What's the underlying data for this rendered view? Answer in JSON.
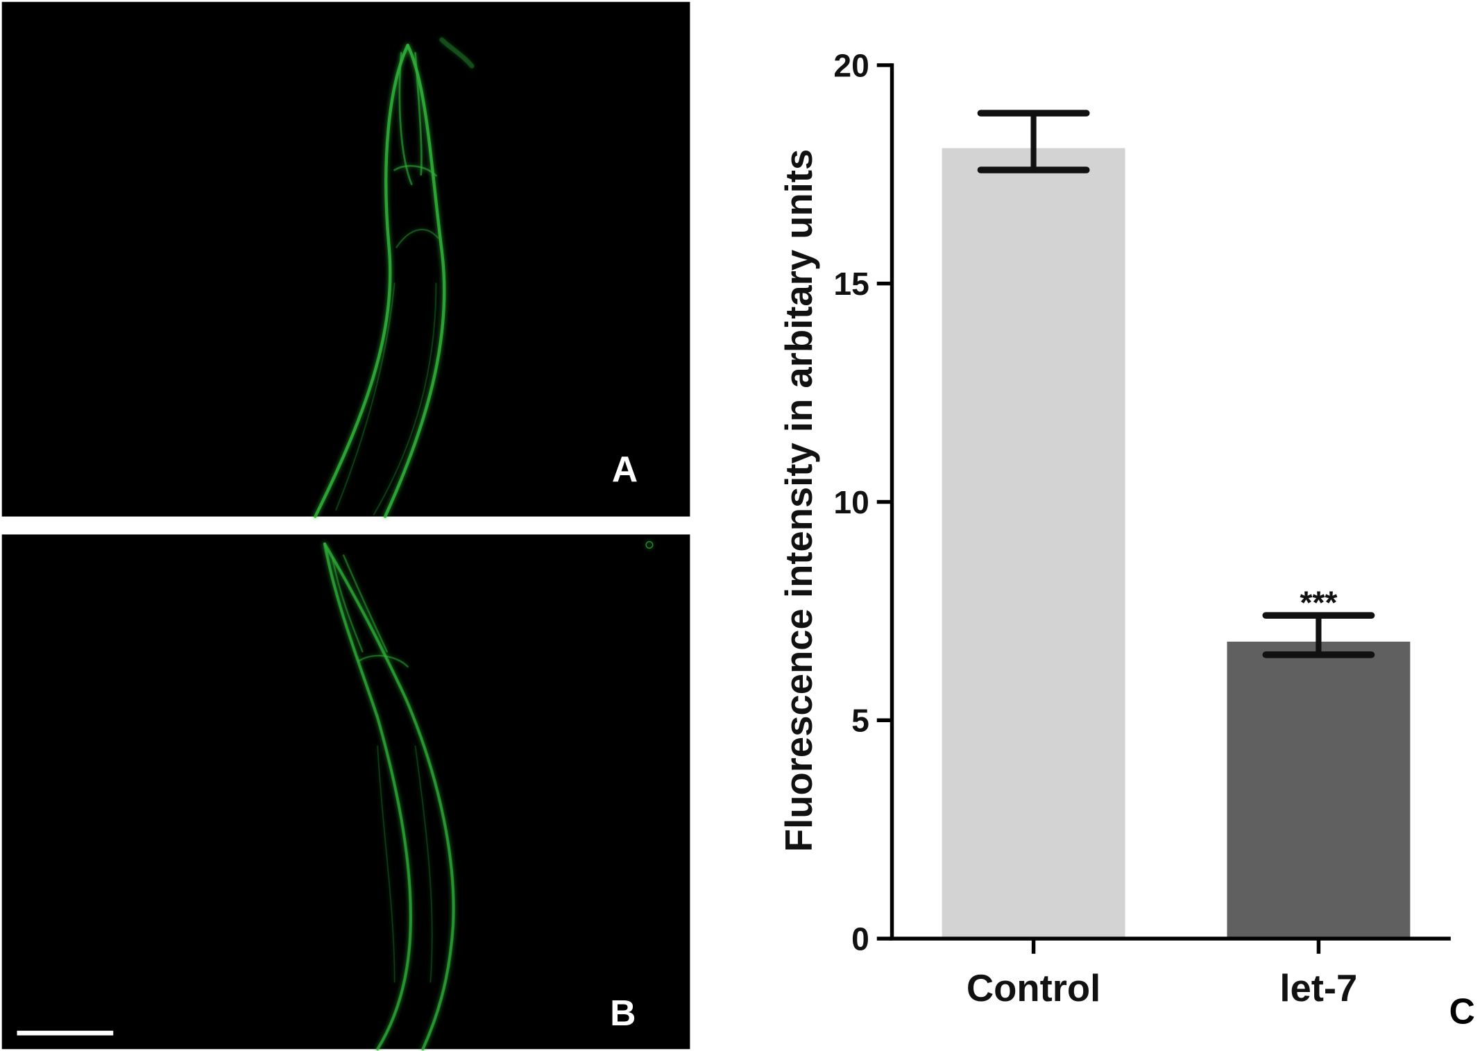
{
  "panels": {
    "a_label": "A",
    "b_label": "B",
    "c_label": "C",
    "micrograph_background": "#000000",
    "fluorescence_color": "#2fb33a",
    "panel_letter_color": "#ffffff",
    "chart_letter_color": "#000000"
  },
  "chart_data": {
    "type": "bar",
    "categories": [
      "Control",
      "let-7"
    ],
    "values": [
      18.1,
      6.8
    ],
    "error_upper": [
      18.9,
      7.4
    ],
    "error_lower": [
      17.6,
      6.5
    ],
    "significance": [
      "",
      "***"
    ],
    "bar_colors": [
      "#d3d3d3",
      "#606060"
    ],
    "title": "",
    "xlabel": "",
    "ylabel": "Fluorescence intensity in arbitary units",
    "ylim": [
      0,
      20
    ],
    "yticks": [
      0,
      5,
      10,
      15,
      20
    ],
    "ytick_labels": [
      "0",
      "5",
      "10",
      "15",
      "20"
    ],
    "grid": false,
    "legend": "none"
  }
}
